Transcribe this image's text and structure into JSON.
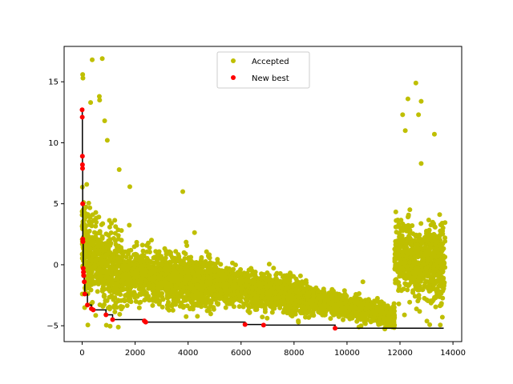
{
  "chart_data": {
    "type": "scatter",
    "title": "",
    "xlabel": "",
    "ylabel": "",
    "xlim": [
      -680,
      14330
    ],
    "ylim": [
      -6.3,
      17.9
    ],
    "grid": false,
    "legend_position": "upper center",
    "xticks": [
      0,
      2000,
      4000,
      6000,
      8000,
      10000,
      12000,
      14000
    ],
    "xtick_labels": [
      "0",
      "2000",
      "4000",
      "6000",
      "8000",
      "10000",
      "12000",
      "14000"
    ],
    "yticks": [
      -5,
      0,
      5,
      10,
      15
    ],
    "ytick_labels": [
      "−5",
      "0",
      "5",
      "10",
      "15"
    ],
    "series": [
      {
        "name": "Accepted",
        "kind": "points",
        "color": "#bfbf00",
        "cloud_segments": [
          {
            "x_range": [
              0,
              300
            ],
            "center_start": 2.5,
            "center_end": 0.5,
            "spread": 3.2
          },
          {
            "x_range": [
              300,
              1500
            ],
            "center_start": 0.5,
            "center_end": -0.8,
            "spread": 2.8
          },
          {
            "x_range": [
              1500,
              5000
            ],
            "center_start": -0.8,
            "center_end": -1.5,
            "spread": 1.9
          },
          {
            "x_range": [
              5000,
              8500
            ],
            "center_start": -1.5,
            "center_end": -2.8,
            "spread": 1.3
          },
          {
            "x_range": [
              8500,
              11800
            ],
            "center_start": -2.8,
            "center_end": -4.2,
            "spread": 0.8
          },
          {
            "x_range": [
              11800,
              13700
            ],
            "center_start": 0.5,
            "center_end": 0.0,
            "spread": 2.8
          }
        ],
        "points": [
          {
            "x": 20,
            "y": 15.6
          },
          {
            "x": 30,
            "y": 15.3
          },
          {
            "x": 380,
            "y": 16.8
          },
          {
            "x": 760,
            "y": 16.9
          },
          {
            "x": 650,
            "y": 13.8
          },
          {
            "x": 660,
            "y": 13.5
          },
          {
            "x": 320,
            "y": 13.3
          },
          {
            "x": 950,
            "y": 10.2
          },
          {
            "x": 850,
            "y": 11.8
          },
          {
            "x": 3800,
            "y": 6.0
          },
          {
            "x": 1800,
            "y": 6.4
          },
          {
            "x": 1400,
            "y": 7.8
          },
          {
            "x": 12600,
            "y": 14.9
          },
          {
            "x": 12300,
            "y": 13.6
          },
          {
            "x": 12800,
            "y": 13.4
          },
          {
            "x": 12100,
            "y": 12.3
          },
          {
            "x": 12700,
            "y": 12.3
          },
          {
            "x": 13300,
            "y": 10.7
          },
          {
            "x": 12200,
            "y": 11.0
          },
          {
            "x": 12800,
            "y": 8.3
          },
          {
            "x": 10600,
            "y": -1.4
          },
          {
            "x": 11200,
            "y": -4.8
          },
          {
            "x": 11700,
            "y": -5.1
          },
          {
            "x": 13600,
            "y": -4.3
          }
        ]
      },
      {
        "name": "New best",
        "kind": "points",
        "color": "#ff0000",
        "points": [
          {
            "x": 0,
            "y": 12.7
          },
          {
            "x": 5,
            "y": 12.1
          },
          {
            "x": 10,
            "y": 8.9
          },
          {
            "x": 12,
            "y": 8.2
          },
          {
            "x": 15,
            "y": 7.9
          },
          {
            "x": 20,
            "y": 5.0
          },
          {
            "x": 25,
            "y": 2.1
          },
          {
            "x": 30,
            "y": 1.9
          },
          {
            "x": 40,
            "y": -0.3
          },
          {
            "x": 50,
            "y": -0.6
          },
          {
            "x": 60,
            "y": -0.9
          },
          {
            "x": 80,
            "y": -1.4
          },
          {
            "x": 100,
            "y": -2.4
          },
          {
            "x": 200,
            "y": -3.3
          },
          {
            "x": 350,
            "y": -3.6
          },
          {
            "x": 420,
            "y": -3.7
          },
          {
            "x": 900,
            "y": -4.1
          },
          {
            "x": 1150,
            "y": -4.5
          },
          {
            "x": 2350,
            "y": -4.6
          },
          {
            "x": 2400,
            "y": -4.7
          },
          {
            "x": 6150,
            "y": -4.9
          },
          {
            "x": 6850,
            "y": -4.95
          },
          {
            "x": 9550,
            "y": -5.2
          }
        ]
      },
      {
        "name": "",
        "kind": "step-line",
        "color": "#000000",
        "points": [
          {
            "x": 0,
            "y": 12.7
          },
          {
            "x": 5,
            "y": 12.1
          },
          {
            "x": 10,
            "y": 8.9
          },
          {
            "x": 12,
            "y": 8.2
          },
          {
            "x": 15,
            "y": 7.9
          },
          {
            "x": 20,
            "y": 5.0
          },
          {
            "x": 25,
            "y": 2.1
          },
          {
            "x": 30,
            "y": 1.9
          },
          {
            "x": 40,
            "y": -0.3
          },
          {
            "x": 50,
            "y": -0.6
          },
          {
            "x": 60,
            "y": -0.9
          },
          {
            "x": 80,
            "y": -1.4
          },
          {
            "x": 100,
            "y": -2.4
          },
          {
            "x": 200,
            "y": -3.3
          },
          {
            "x": 350,
            "y": -3.6
          },
          {
            "x": 420,
            "y": -3.7
          },
          {
            "x": 900,
            "y": -4.1
          },
          {
            "x": 1150,
            "y": -4.5
          },
          {
            "x": 2350,
            "y": -4.6
          },
          {
            "x": 2400,
            "y": -4.7
          },
          {
            "x": 6150,
            "y": -4.9
          },
          {
            "x": 6850,
            "y": -4.95
          },
          {
            "x": 9550,
            "y": -5.2
          },
          {
            "x": 13650,
            "y": -5.2
          }
        ]
      }
    ],
    "legend": [
      {
        "label": "Accepted",
        "color": "#bfbf00"
      },
      {
        "label": "New best",
        "color": "#ff0000"
      }
    ]
  }
}
